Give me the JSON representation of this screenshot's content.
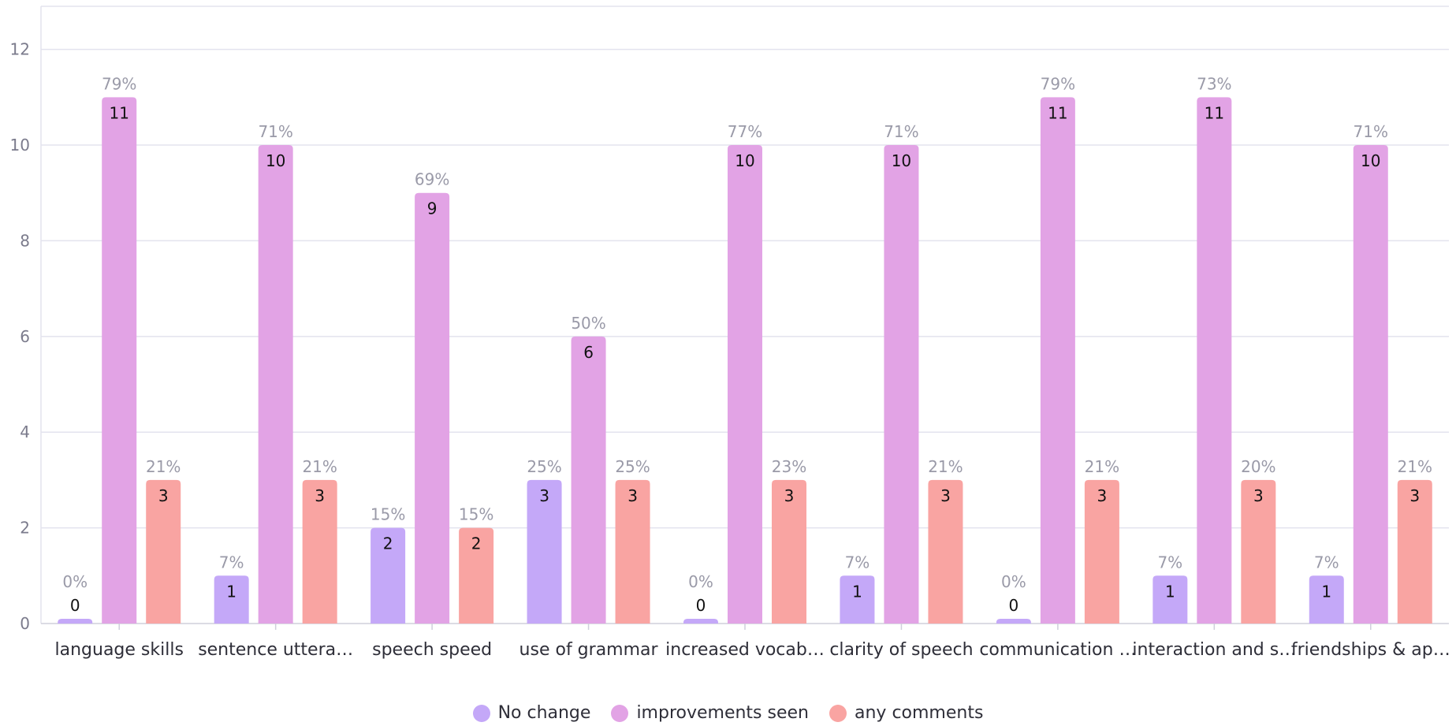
{
  "chart_data": {
    "type": "bar",
    "categories": [
      "language skills",
      "sentence uttera…",
      "speech speed",
      "use of grammar",
      "increased vocab…",
      "clarity of speech",
      "communication …",
      "interaction and s…",
      "friendships & ap…"
    ],
    "series": [
      {
        "name": "No change",
        "color": "#c4a8f8",
        "values": [
          0,
          1,
          2,
          3,
          0,
          1,
          0,
          1,
          1
        ],
        "labels": [
          "0%",
          "7%",
          "15%",
          "25%",
          "0%",
          "7%",
          "0%",
          "7%",
          "7%"
        ]
      },
      {
        "name": "improvements seen",
        "color": "#e2a3e5",
        "values": [
          11,
          10,
          9,
          6,
          10,
          10,
          11,
          11,
          10
        ],
        "labels": [
          "79%",
          "71%",
          "69%",
          "50%",
          "77%",
          "71%",
          "79%",
          "73%",
          "71%"
        ]
      },
      {
        "name": "any comments",
        "color": "#f9a4a2",
        "values": [
          3,
          3,
          2,
          3,
          3,
          3,
          3,
          3,
          3
        ],
        "labels": [
          "21%",
          "21%",
          "15%",
          "25%",
          "23%",
          "21%",
          "21%",
          "20%",
          "21%"
        ]
      }
    ],
    "yticks": [
      "0",
      "2",
      "4",
      "6",
      "8",
      "10",
      "12"
    ],
    "ylim": [
      0,
      12.9
    ],
    "grid": true,
    "legend": "bottom-center"
  }
}
